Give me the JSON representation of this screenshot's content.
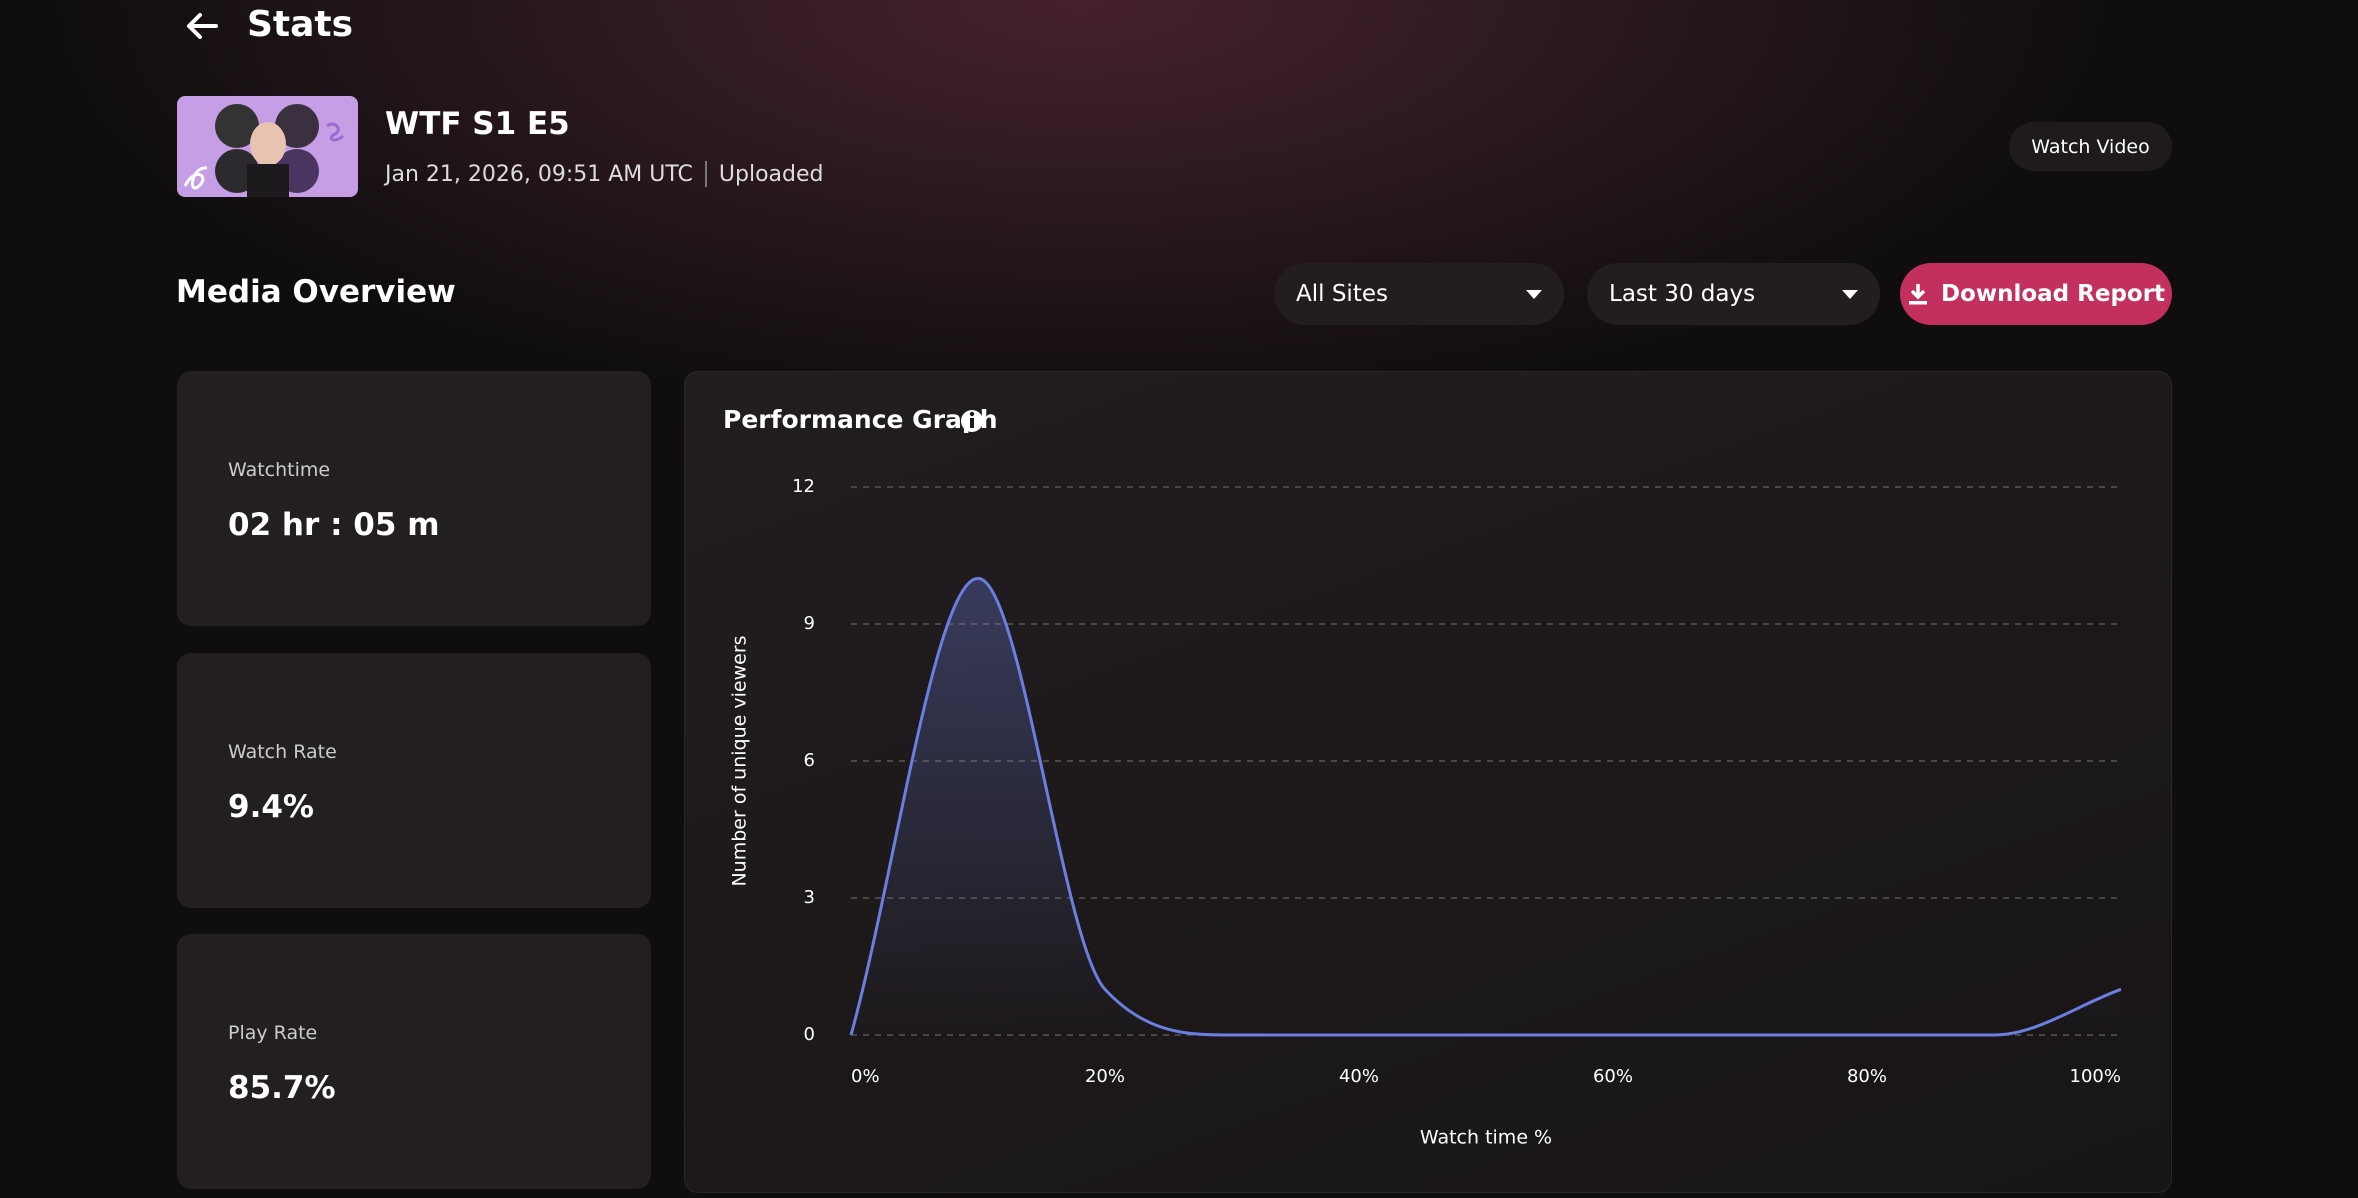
{
  "header": {
    "title": "Stats"
  },
  "media": {
    "title": "WTF S1 E5",
    "date": "Jan 21, 2026, 09:51 AM UTC",
    "status": "Uploaded",
    "watch_button": "Watch Video"
  },
  "overview": {
    "title": "Media Overview",
    "site_filter": "All Sites",
    "range_filter": "Last 30 days",
    "download_button": "Download Report"
  },
  "cards": [
    {
      "label": "Watchtime",
      "value": "02 hr : 05 m"
    },
    {
      "label": "Watch Rate",
      "value": "9.4%"
    },
    {
      "label": "Play Rate",
      "value": "85.7%"
    }
  ],
  "chart_data": {
    "type": "area",
    "title": "Performance Graph",
    "x_label": "Watch time %",
    "y_label": "Number of unique viewers",
    "x": [
      0,
      10,
      20,
      30,
      40,
      50,
      60,
      70,
      80,
      90,
      100
    ],
    "series": [
      {
        "name": "Unique viewers",
        "color": "#6b7fe0",
        "values": [
          0,
          10,
          1,
          0,
          0,
          0,
          0,
          0,
          0,
          0,
          1
        ]
      }
    ],
    "xlim": [
      0,
      100
    ],
    "xticks": [
      {
        "value": 0,
        "label": "0%"
      },
      {
        "value": 20,
        "label": "20%"
      },
      {
        "value": 40,
        "label": "40%"
      },
      {
        "value": 60,
        "label": "60%"
      },
      {
        "value": 80,
        "label": "80%"
      },
      {
        "value": 100,
        "label": "100%"
      }
    ],
    "ylim": [
      0,
      12
    ],
    "yticks": [
      0,
      3,
      6,
      9,
      12
    ],
    "grid": true,
    "smooth": true
  }
}
